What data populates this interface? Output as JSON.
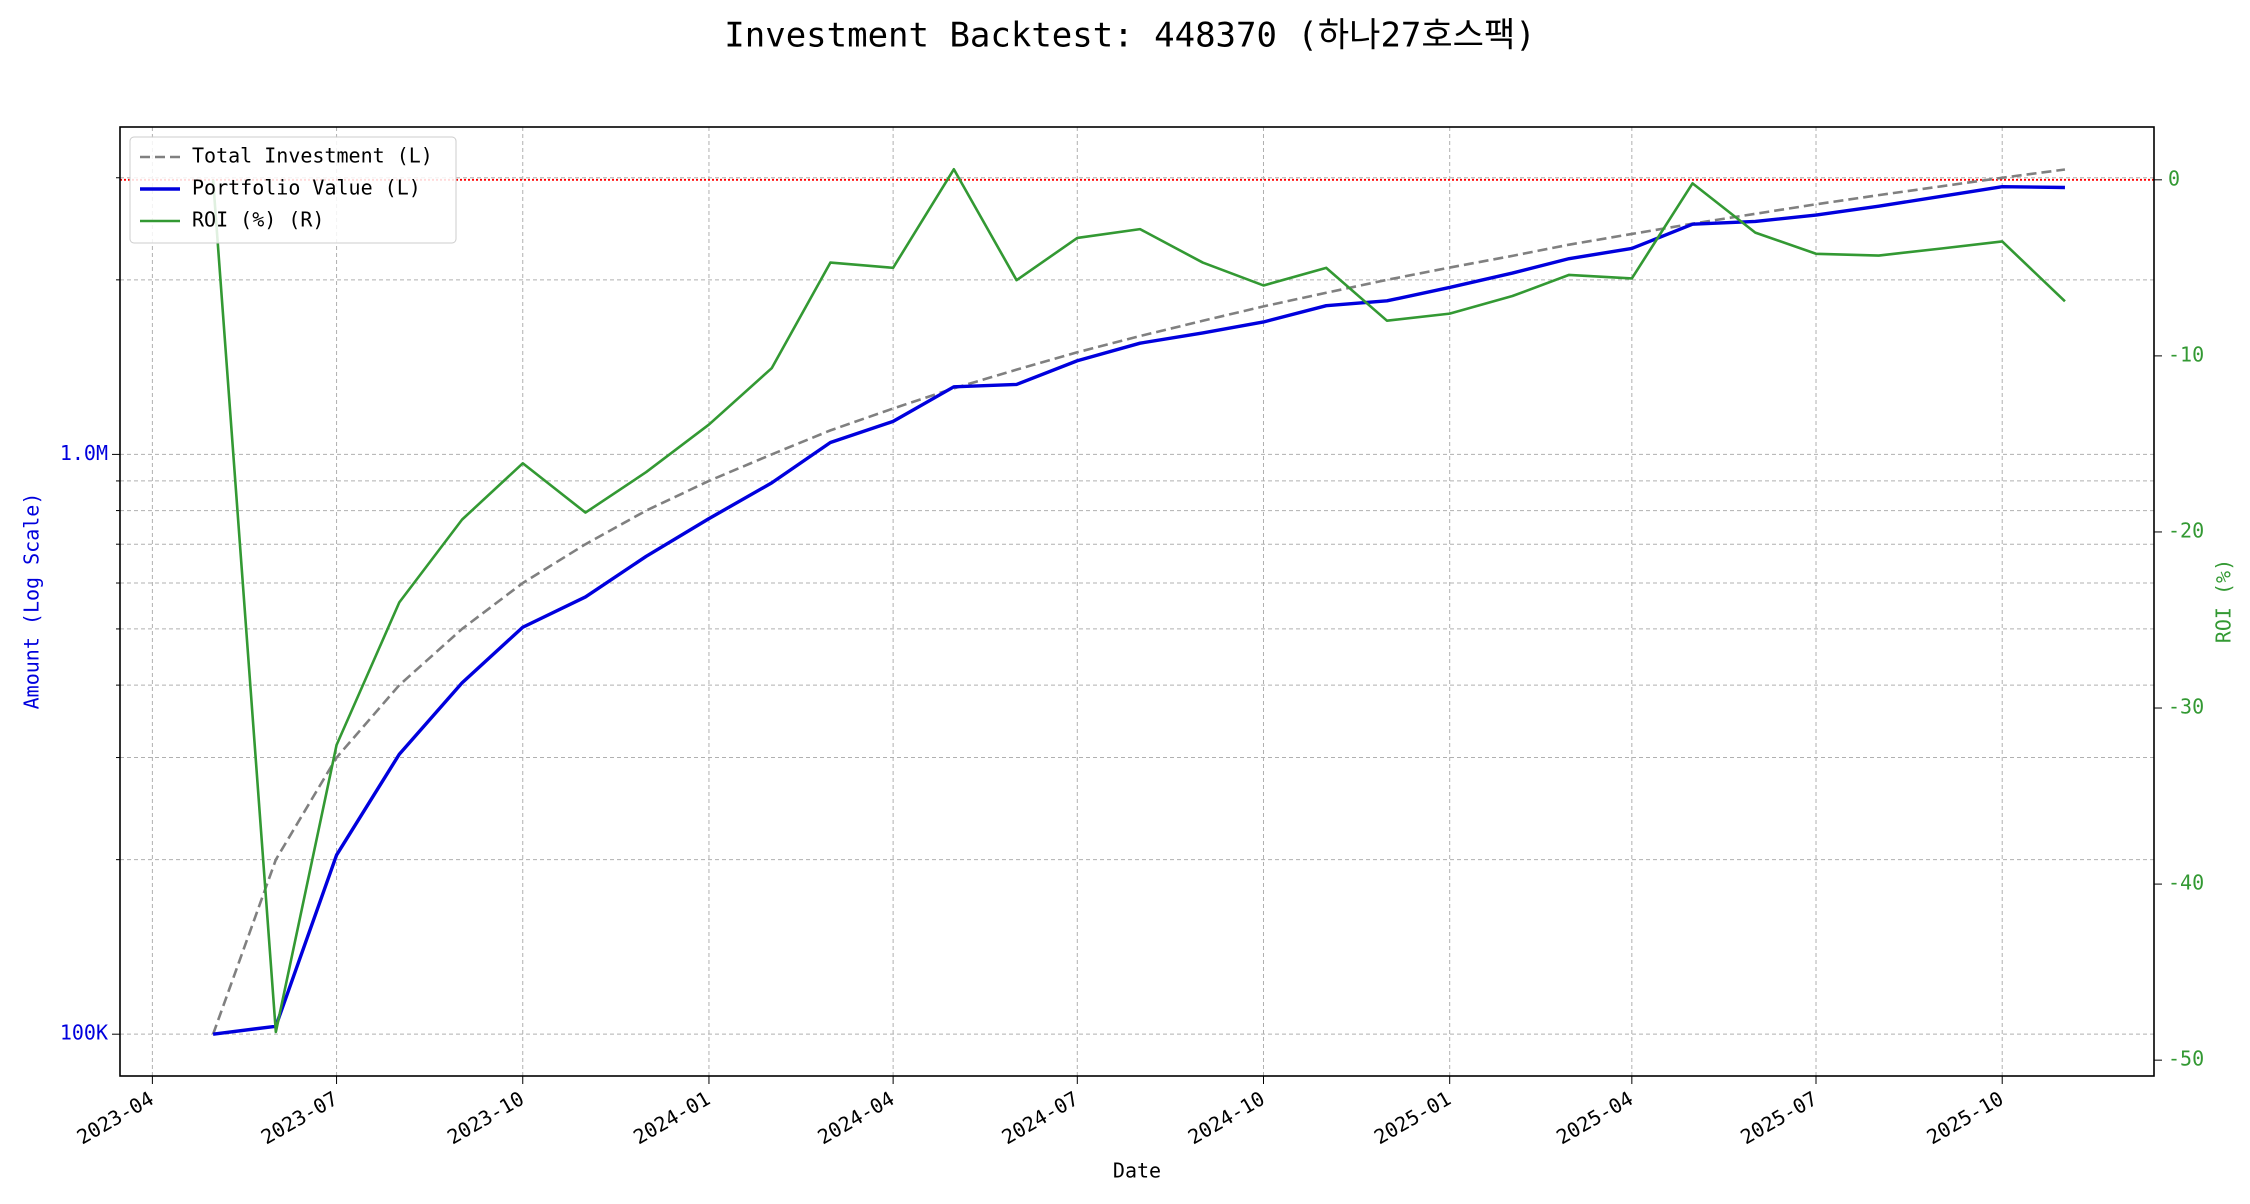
{
  "chart_data": {
    "type": "line",
    "title": "Investment Backtest: 448370 (하나27호스팩)",
    "x_label": "Date",
    "y_label": "Amount (Log Scale)",
    "y2_label": "ROI (%)",
    "x": [
      "2023-05",
      "2023-06",
      "2023-07",
      "2023-08",
      "2023-09",
      "2023-10",
      "2023-11",
      "2023-12",
      "2024-01",
      "2024-02",
      "2024-03",
      "2024-04",
      "2024-05",
      "2024-06",
      "2024-07",
      "2024-08",
      "2024-09",
      "2024-10",
      "2024-11",
      "2024-12",
      "2025-01",
      "2025-02",
      "2025-03",
      "2025-04",
      "2025-05",
      "2025-06",
      "2025-07",
      "2025-08",
      "2025-09",
      "2025-10",
      "2025-11"
    ],
    "series": [
      {
        "name": "Total Investment (L)",
        "color": "#808080",
        "linestyle": "dashed",
        "axis": "y",
        "values": [
          100000,
          200000,
          300000,
          400000,
          500000,
          600000,
          700000,
          800000,
          900000,
          1000000,
          1100000,
          1200000,
          1300000,
          1400000,
          1500000,
          1600000,
          1700000,
          1800000,
          1900000,
          2000000,
          2100000,
          2200000,
          2300000,
          2400000,
          2500000,
          2600000,
          2700000,
          2800000,
          2900000,
          3000000,
          3100000
        ]
      },
      {
        "name": "Portfolio Value (L)",
        "color": "#0000dd",
        "linestyle": "solid",
        "axis": "y",
        "values": [
          100000,
          103200,
          203700,
          304000,
          403500,
          503400,
          567700,
          667200,
          774900,
          893000,
          1048300,
          1140000,
          1307800,
          1320200,
          1450500,
          1555200,
          1620100,
          1692000,
          1805000,
          1840000,
          1940400,
          2054800,
          2175800,
          2265600,
          2495000,
          2522000,
          2586600,
          2679600,
          2786900,
          2895000,
          2886100
        ]
      },
      {
        "name": "ROI (%) (R)",
        "color": "#339933",
        "linestyle": "solid",
        "axis": "y2",
        "values": [
          0,
          -48.4,
          -32.1,
          -24.0,
          -19.3,
          -16.1,
          -18.9,
          -16.6,
          -13.9,
          -10.7,
          -4.7,
          -5.0,
          0.6,
          -5.7,
          -3.3,
          -2.8,
          -4.7,
          -6.0,
          -5.0,
          -8.0,
          -7.6,
          -6.6,
          -5.4,
          -5.6,
          -0.2,
          -3.0,
          -4.2,
          -4.3,
          -3.9,
          -3.5,
          -6.9
        ]
      }
    ],
    "xlim": [
      "2023-03-16",
      "2025-12-15"
    ],
    "xticks": [
      "2023-04",
      "2023-07",
      "2023-10",
      "2024-01",
      "2024-04",
      "2024-07",
      "2024-10",
      "2025-01",
      "2025-04",
      "2025-07",
      "2025-10"
    ],
    "ylim": [
      84700,
      3670000
    ],
    "y_scale": "log",
    "yticks": [
      {
        "value": 100000,
        "label": "100K"
      },
      {
        "value": 1000000,
        "label": "1.0M"
      }
    ],
    "yminorticks": [
      200000,
      300000,
      400000,
      500000,
      600000,
      700000,
      800000,
      900000,
      2000000,
      3000000
    ],
    "y2lim": [
      -50.9,
      3.0
    ],
    "y2ticks": [
      0,
      -10,
      -20,
      -30,
      -40,
      -50
    ],
    "hline": {
      "axis": "y2",
      "value": 0,
      "color": "#ff0000"
    },
    "grid": true,
    "legend": "upper left"
  }
}
